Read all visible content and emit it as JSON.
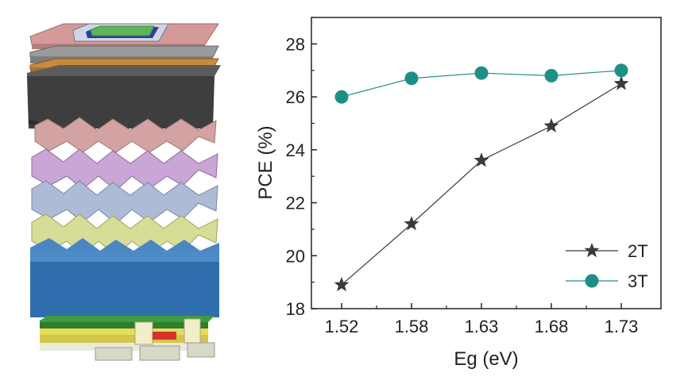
{
  "figure": {
    "device_illustration": "layered-solar-cell-device-stack"
  },
  "colors": {
    "series_2T": "#3a3a3a",
    "series_3T": "#1e8f86",
    "axis": "#222222"
  },
  "chart_data": {
    "type": "line",
    "title": "",
    "xlabel": "Eg (eV)",
    "ylabel": "PCE (%)",
    "categories": [
      "1.52",
      "1.58",
      "1.63",
      "1.68",
      "1.73"
    ],
    "ylim": [
      18,
      29
    ],
    "yticks": [
      18,
      20,
      22,
      24,
      26,
      28
    ],
    "grid": false,
    "legend_position": "bottom-right",
    "series": [
      {
        "name": "2T",
        "marker": "star",
        "values": [
          18.9,
          21.2,
          23.6,
          24.9,
          26.5
        ]
      },
      {
        "name": "3T",
        "marker": "circle",
        "values": [
          26.0,
          26.7,
          26.9,
          26.8,
          27.0
        ]
      }
    ]
  }
}
